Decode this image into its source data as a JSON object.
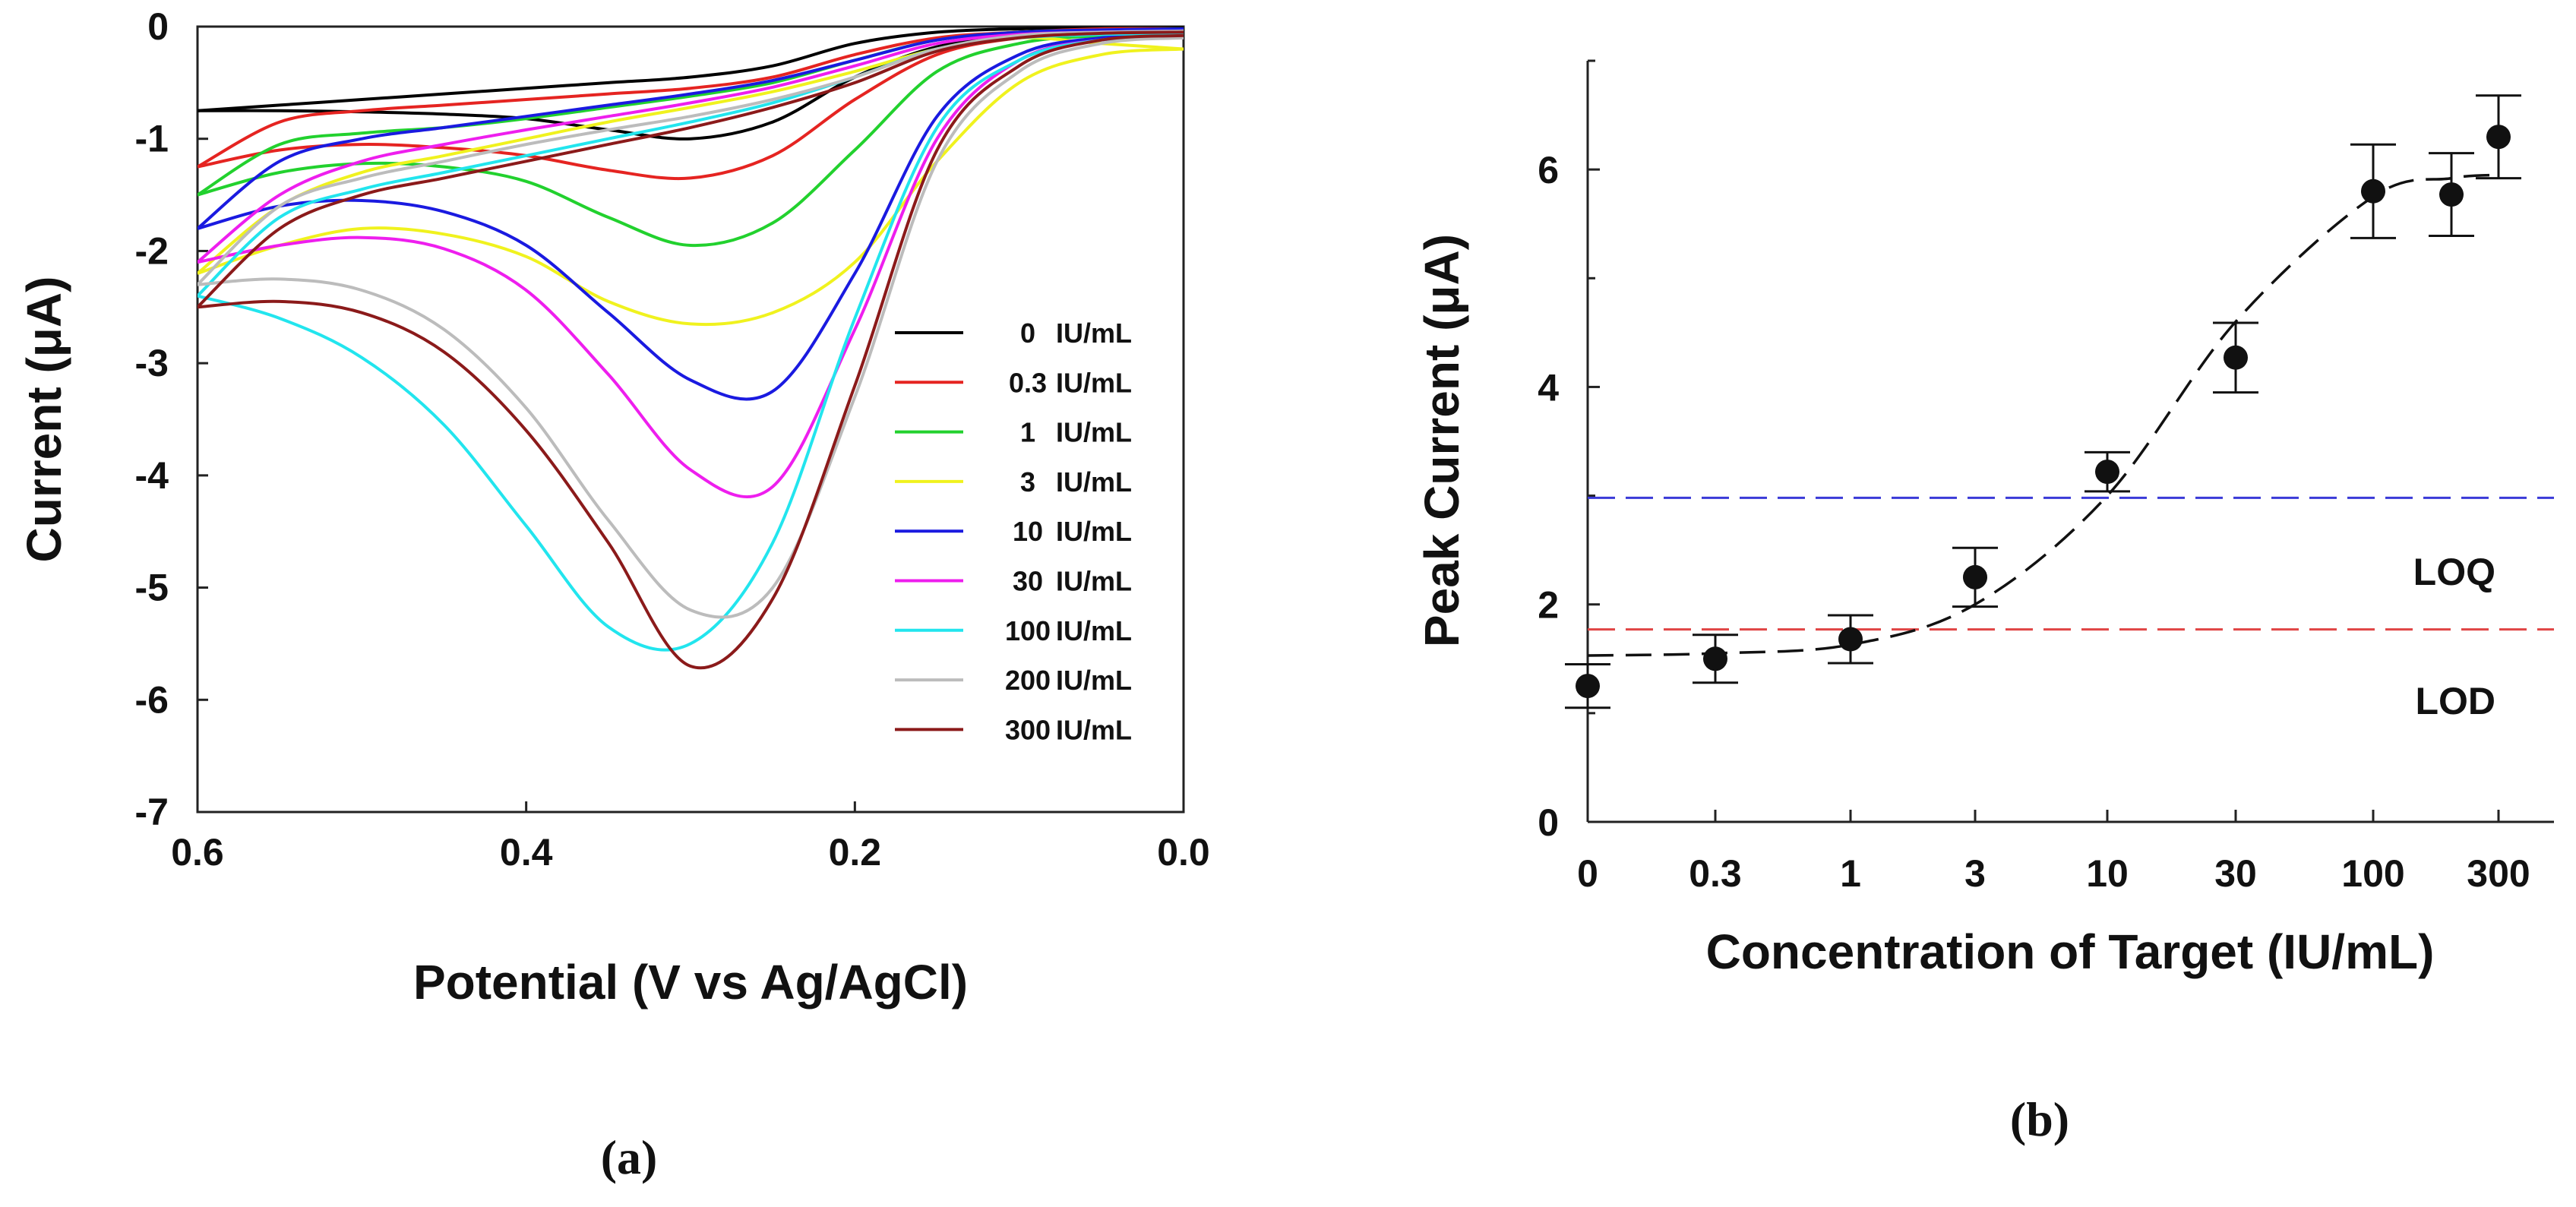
{
  "chart_data": [
    {
      "id": "a",
      "type": "line",
      "caption": "(a)",
      "xlabel": "Potential (V vs Ag/AgCl)",
      "ylabel": "Current (μA)",
      "xlim": [
        0.6,
        0.0
      ],
      "ylim": [
        -7,
        0
      ],
      "x_ticks": [
        "0.6",
        "0.4",
        "0.2",
        "0.0"
      ],
      "y_ticks": [
        "0",
        "-1",
        "-2",
        "-3",
        "-4",
        "-5",
        "-6",
        "-7"
      ],
      "series": [
        {
          "conc": "0",
          "unit": "IU/mL",
          "color": "#000000",
          "x": [
            0.6,
            0.55,
            0.5,
            0.45,
            0.4,
            0.35,
            0.3,
            0.25,
            0.2,
            0.15,
            0.1,
            0.05,
            0.0
          ],
          "forward": [
            -0.75,
            -0.7,
            -0.65,
            -0.6,
            -0.55,
            -0.5,
            -0.45,
            -0.35,
            -0.15,
            -0.05,
            -0.02,
            -0.01,
            0.0
          ],
          "reverse": [
            -0.75,
            -0.75,
            -0.76,
            -0.78,
            -0.82,
            -0.92,
            -1.0,
            -0.85,
            -0.45,
            -0.18,
            -0.08,
            -0.05,
            -0.05
          ]
        },
        {
          "conc": "0.3",
          "unit": "IU/mL",
          "color": "#e52421",
          "x": [
            0.6,
            0.55,
            0.5,
            0.45,
            0.4,
            0.35,
            0.3,
            0.25,
            0.2,
            0.15,
            0.1,
            0.05,
            0.0
          ],
          "forward": [
            -1.25,
            -0.85,
            -0.75,
            -0.7,
            -0.65,
            -0.6,
            -0.55,
            -0.45,
            -0.25,
            -0.1,
            -0.05,
            -0.02,
            -0.02
          ],
          "reverse": [
            -1.25,
            -1.1,
            -1.05,
            -1.08,
            -1.15,
            -1.28,
            -1.35,
            -1.15,
            -0.65,
            -0.25,
            -0.1,
            -0.06,
            -0.05
          ]
        },
        {
          "conc": "1",
          "unit": "IU/mL",
          "color": "#22d12e",
          "x": [
            0.6,
            0.55,
            0.5,
            0.45,
            0.4,
            0.35,
            0.3,
            0.25,
            0.2,
            0.15,
            0.1,
            0.05,
            0.0
          ],
          "forward": [
            -1.5,
            -1.05,
            -0.95,
            -0.9,
            -0.82,
            -0.72,
            -0.62,
            -0.5,
            -0.3,
            -0.12,
            -0.05,
            -0.03,
            -0.02
          ],
          "reverse": [
            -1.5,
            -1.3,
            -1.22,
            -1.25,
            -1.38,
            -1.7,
            -1.95,
            -1.75,
            -1.1,
            -0.4,
            -0.15,
            -0.08,
            -0.06
          ]
        },
        {
          "conc": "3",
          "unit": "IU/mL",
          "color": "#f0f21e",
          "x": [
            0.6,
            0.55,
            0.5,
            0.45,
            0.4,
            0.35,
            0.3,
            0.25,
            0.2,
            0.15,
            0.1,
            0.05,
            0.0
          ],
          "forward": [
            -2.2,
            -1.6,
            -1.3,
            -1.15,
            -1.0,
            -0.85,
            -0.72,
            -0.58,
            -0.4,
            -0.2,
            -0.1,
            -0.15,
            -0.2
          ],
          "reverse": [
            -2.2,
            -1.95,
            -1.8,
            -1.85,
            -2.05,
            -2.45,
            -2.65,
            -2.55,
            -2.1,
            -1.2,
            -0.5,
            -0.25,
            -0.2
          ]
        },
        {
          "conc": "10",
          "unit": "IU/mL",
          "color": "#1a1ae0",
          "x": [
            0.6,
            0.55,
            0.5,
            0.45,
            0.4,
            0.35,
            0.3,
            0.25,
            0.2,
            0.15,
            0.1,
            0.05,
            0.0
          ],
          "forward": [
            -1.8,
            -1.2,
            -1.0,
            -0.9,
            -0.8,
            -0.7,
            -0.6,
            -0.48,
            -0.3,
            -0.12,
            -0.05,
            -0.03,
            -0.02
          ],
          "reverse": [
            -1.8,
            -1.6,
            -1.55,
            -1.65,
            -1.95,
            -2.55,
            -3.15,
            -3.25,
            -2.2,
            -0.8,
            -0.25,
            -0.1,
            -0.08
          ]
        },
        {
          "conc": "30",
          "unit": "IU/mL",
          "color": "#ee1eee",
          "x": [
            0.6,
            0.55,
            0.5,
            0.45,
            0.4,
            0.35,
            0.3,
            0.25,
            0.2,
            0.15,
            0.1,
            0.05,
            0.0
          ],
          "forward": [
            -2.1,
            -1.5,
            -1.2,
            -1.05,
            -0.92,
            -0.8,
            -0.68,
            -0.54,
            -0.35,
            -0.15,
            -0.07,
            -0.05,
            -0.04
          ],
          "reverse": [
            -2.1,
            -1.95,
            -1.88,
            -1.98,
            -2.35,
            -3.1,
            -3.95,
            -4.1,
            -2.7,
            -1.0,
            -0.3,
            -0.12,
            -0.1
          ]
        },
        {
          "conc": "100",
          "unit": "IU/mL",
          "color": "#22e5ee",
          "x": [
            0.6,
            0.55,
            0.5,
            0.45,
            0.4,
            0.35,
            0.3,
            0.25,
            0.2,
            0.15,
            0.1,
            0.05,
            0.0
          ],
          "forward": [
            -2.4,
            -1.7,
            -1.45,
            -1.3,
            -1.15,
            -1.0,
            -0.85,
            -0.68,
            -0.45,
            -0.2,
            -0.1,
            -0.07,
            -0.06
          ],
          "reverse": [
            -2.4,
            -2.6,
            -2.95,
            -3.55,
            -4.45,
            -5.35,
            -5.5,
            -4.6,
            -2.6,
            -0.9,
            -0.3,
            -0.12,
            -0.08
          ]
        },
        {
          "conc": "200",
          "unit": "IU/mL",
          "color": "#bcbcbc",
          "x": [
            0.6,
            0.55,
            0.5,
            0.45,
            0.4,
            0.35,
            0.3,
            0.25,
            0.2,
            0.15,
            0.1,
            0.05,
            0.0
          ],
          "forward": [
            -2.3,
            -1.6,
            -1.35,
            -1.2,
            -1.05,
            -0.92,
            -0.8,
            -0.65,
            -0.45,
            -0.2,
            -0.08,
            -0.05,
            -0.04
          ],
          "reverse": [
            -2.3,
            -2.25,
            -2.35,
            -2.7,
            -3.4,
            -4.4,
            -5.2,
            -5.0,
            -3.3,
            -1.2,
            -0.4,
            -0.15,
            -0.1
          ]
        },
        {
          "conc": "300",
          "unit": "IU/mL",
          "color": "#8b1a1a",
          "x": [
            0.6,
            0.55,
            0.5,
            0.45,
            0.4,
            0.35,
            0.3,
            0.25,
            0.2,
            0.15,
            0.1,
            0.05,
            0.0
          ],
          "forward": [
            -2.5,
            -1.8,
            -1.5,
            -1.35,
            -1.2,
            -1.05,
            -0.9,
            -0.72,
            -0.5,
            -0.22,
            -0.1,
            -0.06,
            -0.05
          ],
          "reverse": [
            -2.5,
            -2.45,
            -2.55,
            -2.9,
            -3.6,
            -4.6,
            -5.7,
            -5.1,
            -3.2,
            -1.1,
            -0.35,
            -0.12,
            -0.08
          ]
        }
      ]
    },
    {
      "id": "b",
      "type": "scatter",
      "caption": "(b)",
      "xlabel": "Concentration of Target (IU/mL)",
      "ylabel": "Peak Current (μA)",
      "ylim": [
        0,
        7
      ],
      "categories": [
        "0",
        "0.3",
        "1",
        "3",
        "10",
        "30",
        "100",
        "200",
        "300"
      ],
      "x_ticks": [
        "0",
        "0.3",
        "1",
        "3",
        "10",
        "30",
        "100",
        "300"
      ],
      "y_ticks": [
        "0",
        "2",
        "4",
        "6"
      ],
      "values": [
        1.25,
        1.5,
        1.68,
        2.25,
        3.22,
        4.27,
        5.8,
        5.77,
        6.3
      ],
      "errors": [
        0.2,
        0.22,
        0.22,
        0.27,
        0.18,
        0.32,
        0.43,
        0.38,
        0.38
      ],
      "fit": {
        "style": "dashed",
        "values": [
          1.53,
          1.55,
          1.63,
          2.0,
          3.0,
          4.6,
          5.75,
          5.92,
          5.95
        ]
      },
      "thresholds": [
        {
          "label": "LOQ",
          "value": 2.98,
          "color": "#3a3ad8"
        },
        {
          "label": "LOD",
          "value": 1.77,
          "color": "#e04444"
        }
      ]
    }
  ]
}
